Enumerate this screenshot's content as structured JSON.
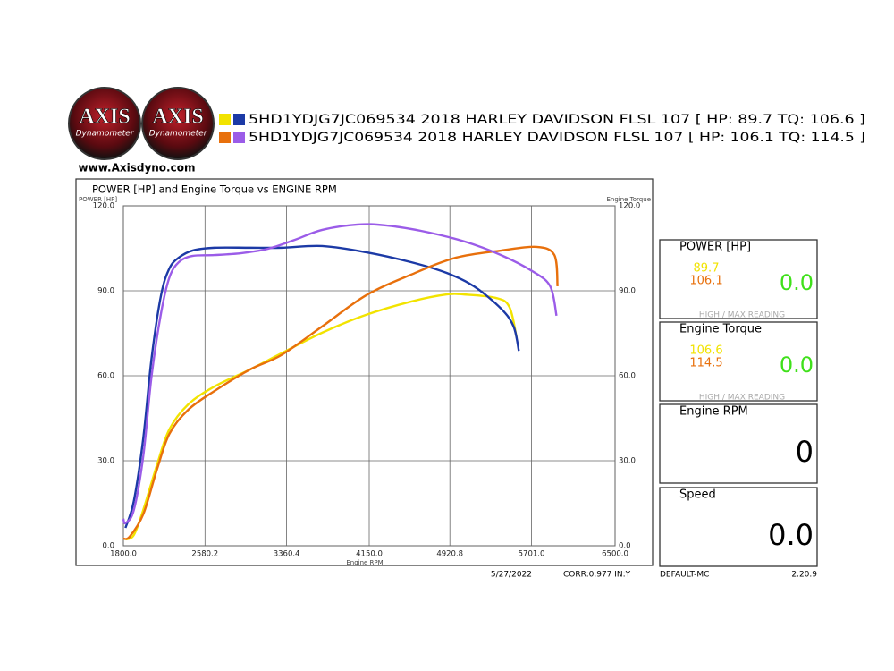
{
  "logo": {
    "text": "AXIS",
    "sub": "Dynamometer"
  },
  "website": "www.Axisdyno.com",
  "chart_data": {
    "type": "line",
    "title": "POWER [HP] and Engine Torque vs ENGINE RPM",
    "ylabel": "POWER [HP]",
    "y2label": "Engine Torque",
    "xlabel": "Engine RPM",
    "xlim": [
      1800,
      6500
    ],
    "xticks": [
      {
        "value": 1800,
        "label": "1800.0"
      },
      {
        "value": 2580.2,
        "label": "2580.2"
      },
      {
        "value": 3360.4,
        "label": "3360.4"
      },
      {
        "value": 4150,
        "label": "4150.0"
      },
      {
        "value": 4920.8,
        "label": "4920.8"
      },
      {
        "value": 5701,
        "label": "5701.0"
      },
      {
        "value": 6500,
        "label": "6500.0"
      }
    ],
    "ylim": [
      0,
      120
    ],
    "yticks": [
      {
        "value": 0,
        "label": "0.0"
      },
      {
        "value": 30,
        "label": "30.0"
      },
      {
        "value": 60,
        "label": "60.0"
      },
      {
        "value": 90,
        "label": "90.0"
      },
      {
        "value": 120,
        "label": "120.0"
      }
    ],
    "y2lim": [
      0,
      120
    ],
    "y2ticks": [
      {
        "value": 0,
        "label": "0.0"
      },
      {
        "value": 30,
        "label": "30.0"
      },
      {
        "value": 60,
        "label": "60.0"
      },
      {
        "value": 90,
        "label": "90.0"
      },
      {
        "value": 120,
        "label": "120.0"
      }
    ],
    "grid": true,
    "series": [
      {
        "name": "5HD1YDJG7JC069534 2018 HARLEY DAVIDSON FLSL 107 [ HP: 89.7 TQ: 106.6 ]",
        "power": {
          "color": "#f2e300",
          "x": [
            1820,
            1900,
            1990,
            2120,
            2240,
            2420,
            2670,
            3010,
            3310,
            3700,
            4120,
            4550,
            4890,
            5060,
            5360,
            5490,
            5560
          ],
          "values": [
            2.2,
            3.8,
            12.6,
            28.4,
            41.1,
            49.9,
            56.2,
            62.2,
            67.9,
            75.2,
            81.5,
            86.2,
            88.7,
            88.7,
            87.5,
            84.3,
            73.3
          ]
        },
        "torque": {
          "color": "#1c3aa6",
          "axis": "y2",
          "x": [
            1820,
            1900,
            1990,
            2070,
            2160,
            2240,
            2330,
            2460,
            2670,
            3010,
            3310,
            3700,
            4120,
            4550,
            4890,
            5150,
            5410,
            5530,
            5580
          ],
          "values": [
            6.3,
            15.8,
            37.9,
            66.3,
            88.4,
            97.9,
            101.7,
            104.2,
            105.2,
            105.2,
            105.2,
            105.8,
            103.6,
            100.1,
            96.3,
            91.6,
            83.7,
            77.4,
            68.8
          ]
        }
      },
      {
        "name": "5HD1YDJG7JC069534 2018 HARLEY DAVIDSON FLSL 107 [ HP: 106.1 TQ: 114.5 ]",
        "power": {
          "color": "#e8700c",
          "x": [
            1800,
            1860,
            1990,
            2120,
            2240,
            2420,
            2670,
            3010,
            3310,
            3700,
            4120,
            4550,
            4980,
            5410,
            5750,
            5920,
            5950
          ],
          "values": [
            2.5,
            3.2,
            11.1,
            26.8,
            39.5,
            48.0,
            54.6,
            62.2,
            67.3,
            77.4,
            88.4,
            95.7,
            101.7,
            104.2,
            105.5,
            102.6,
            91.6
          ]
        },
        "torque": {
          "color": "#9b5ce8",
          "axis": "y2",
          "x": [
            1800,
            1820,
            1900,
            1990,
            2070,
            2160,
            2240,
            2330,
            2460,
            2670,
            2930,
            3180,
            3440,
            3700,
            4040,
            4300,
            4640,
            5060,
            5410,
            5710,
            5880,
            5940
          ],
          "values": [
            9.5,
            8.0,
            12.6,
            31.6,
            60.0,
            82.1,
            94.7,
            100.1,
            102.3,
            102.6,
            103.3,
            104.8,
            108.0,
            111.5,
            113.4,
            113.1,
            111.2,
            107.4,
            102.6,
            96.9,
            91.6,
            81.2
          ]
        }
      }
    ]
  },
  "panels": [
    {
      "title": "POWER [HP]",
      "peaks": [
        {
          "text": "89.7",
          "color": "#f2e300"
        },
        {
          "text": "106.1",
          "color": "#e8700c"
        }
      ],
      "reading": "0.0",
      "reading_color": "#3fe01a",
      "note": "HIGH / MAX READING"
    },
    {
      "title": "Engine Torque",
      "peaks": [
        {
          "text": "106.6",
          "color": "#f2e300"
        },
        {
          "text": "114.5",
          "color": "#e8700c"
        }
      ],
      "reading": "0.0",
      "reading_color": "#3fe01a",
      "note": "HIGH / MAX READING"
    },
    {
      "title": "Engine RPM",
      "reading": "0",
      "reading_color": "#000000"
    },
    {
      "title": "Speed",
      "reading": "0.0",
      "reading_color": "#000000"
    }
  ],
  "footer": {
    "date": "5/27/2022",
    "corr": "CORR:0.977 IN:Y",
    "profile": "DEFAULT-MC",
    "version": "2.20.9"
  }
}
